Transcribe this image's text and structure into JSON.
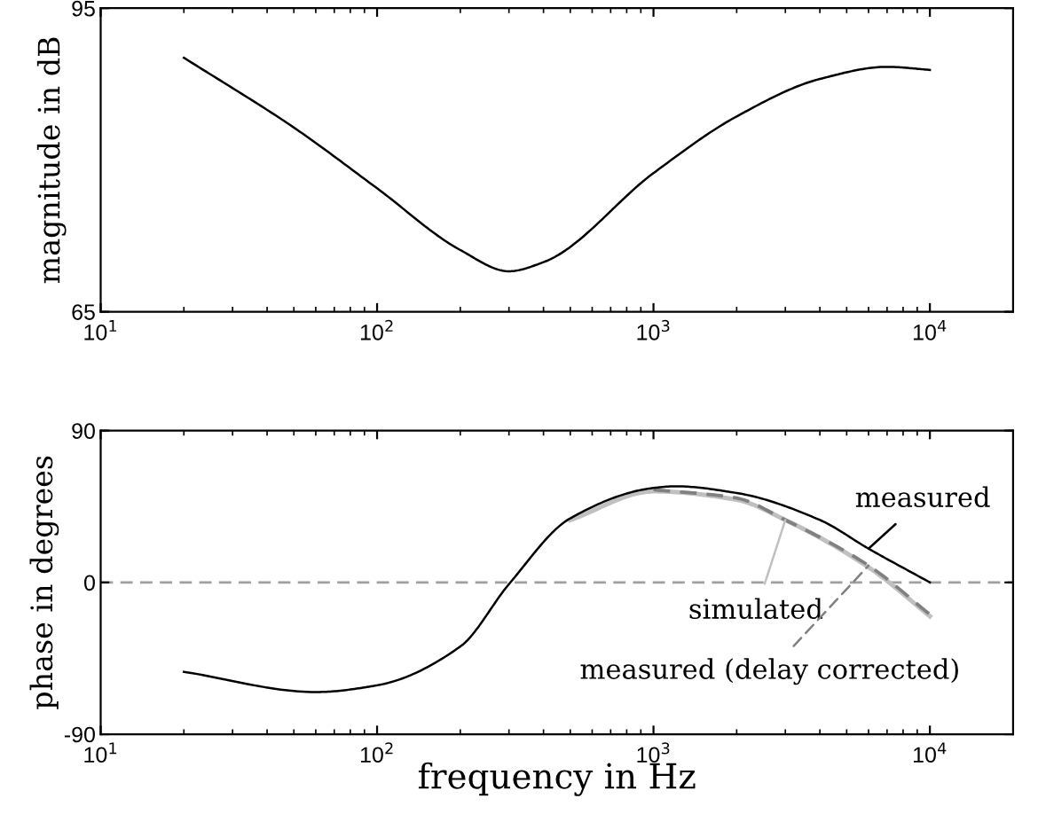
{
  "chart_data": [
    {
      "type": "line",
      "ylabel": "magnitude in dB",
      "log": "x",
      "xlim": [
        10,
        20000
      ],
      "ylim": [
        65,
        95
      ],
      "xticks": [
        {
          "value": 10,
          "label": "10$^{1}$"
        },
        {
          "value": 100,
          "label": "10$^{2}$"
        },
        {
          "value": 1000,
          "label": "10$^{3}$"
        },
        {
          "value": 10000,
          "label": "10$^{4}$"
        }
      ],
      "yticks": [
        65,
        95
      ],
      "grid": false,
      "legend": false,
      "series": [
        {
          "color": "#000000",
          "x": [
            20,
            50,
            100,
            200,
            300,
            400,
            1000,
            2000,
            4000,
            7000,
            10000
          ],
          "values": [
            90.1,
            83.2,
            77.2,
            71.1,
            69.0,
            69.9,
            78.7,
            84.3,
            88.0,
            89.2,
            88.9
          ]
        }
      ]
    },
    {
      "type": "line",
      "xlabel": "frequency in Hz",
      "ylabel": "phase in degrees",
      "log": "x",
      "xlim": [
        10,
        20000
      ],
      "ylim": [
        -90,
        90
      ],
      "xticks": [
        {
          "value": 10,
          "label": "10$^{1}$"
        },
        {
          "value": 100,
          "label": "10$^{2}$"
        },
        {
          "value": 1000,
          "label": "10$^{3}$"
        },
        {
          "value": 10000,
          "label": "10$^{4}$"
        }
      ],
      "yticks": [
        -90,
        0,
        90
      ],
      "grid": false,
      "ref_lines": [
        {
          "axis": "y",
          "value": 0,
          "color": "#a0a0a0",
          "line_style": "dashed"
        }
      ],
      "series": [
        {
          "name": "measured",
          "color": "#000000",
          "line_style": "solid",
          "x": [
            20,
            60,
            100,
            200,
            300,
            500,
            1000,
            1200,
            2000,
            4000,
            6000,
            10000
          ],
          "values": [
            -53,
            -65,
            -61,
            -38,
            -1,
            38,
            56,
            57,
            53,
            37,
            20,
            0
          ]
        },
        {
          "name": "simulated",
          "color": "#c0c0c0",
          "line_style": "solid",
          "x": [
            500,
            1000,
            2000,
            3000,
            6000,
            10000
          ],
          "values": [
            37,
            54,
            49,
            37,
            9,
            -20
          ]
        },
        {
          "name": "measured (delay corrected)",
          "color": "#808080",
          "line_style": "dashed",
          "x": [
            1000,
            2000,
            3000,
            6000,
            10000
          ],
          "values": [
            55,
            50,
            37,
            10,
            -19
          ]
        }
      ]
    }
  ]
}
